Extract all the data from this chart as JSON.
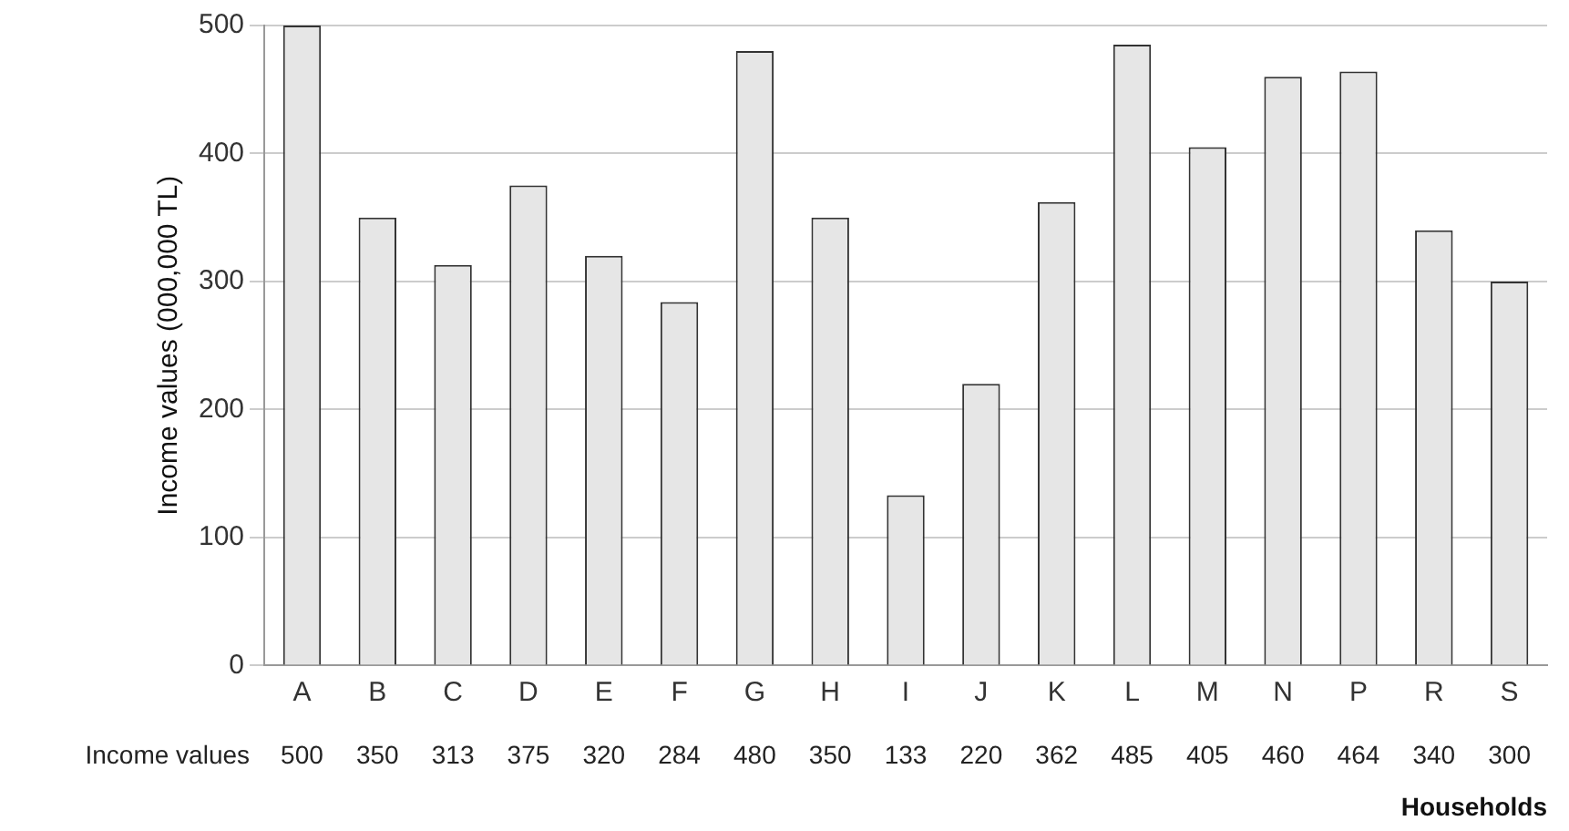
{
  "chart_data": {
    "type": "bar",
    "xlabel": "Households",
    "ylabel": "Income values (000,000 TL)",
    "categories": [
      "A",
      "B",
      "C",
      "D",
      "E",
      "F",
      "G",
      "H",
      "I",
      "J",
      "K",
      "L",
      "M",
      "N",
      "P",
      "R",
      "S"
    ],
    "series": [
      {
        "name": "Income values",
        "color": "#e6e6e6",
        "values": [
          500,
          350,
          313,
          375,
          320,
          284,
          480,
          350,
          133,
          220,
          362,
          485,
          405,
          460,
          464,
          340,
          300
        ]
      }
    ],
    "ylim": [
      0,
      500
    ],
    "yticks": [
      0,
      100,
      200,
      300,
      400,
      500
    ],
    "grid": "y",
    "legend": false,
    "data_labels": true
  }
}
